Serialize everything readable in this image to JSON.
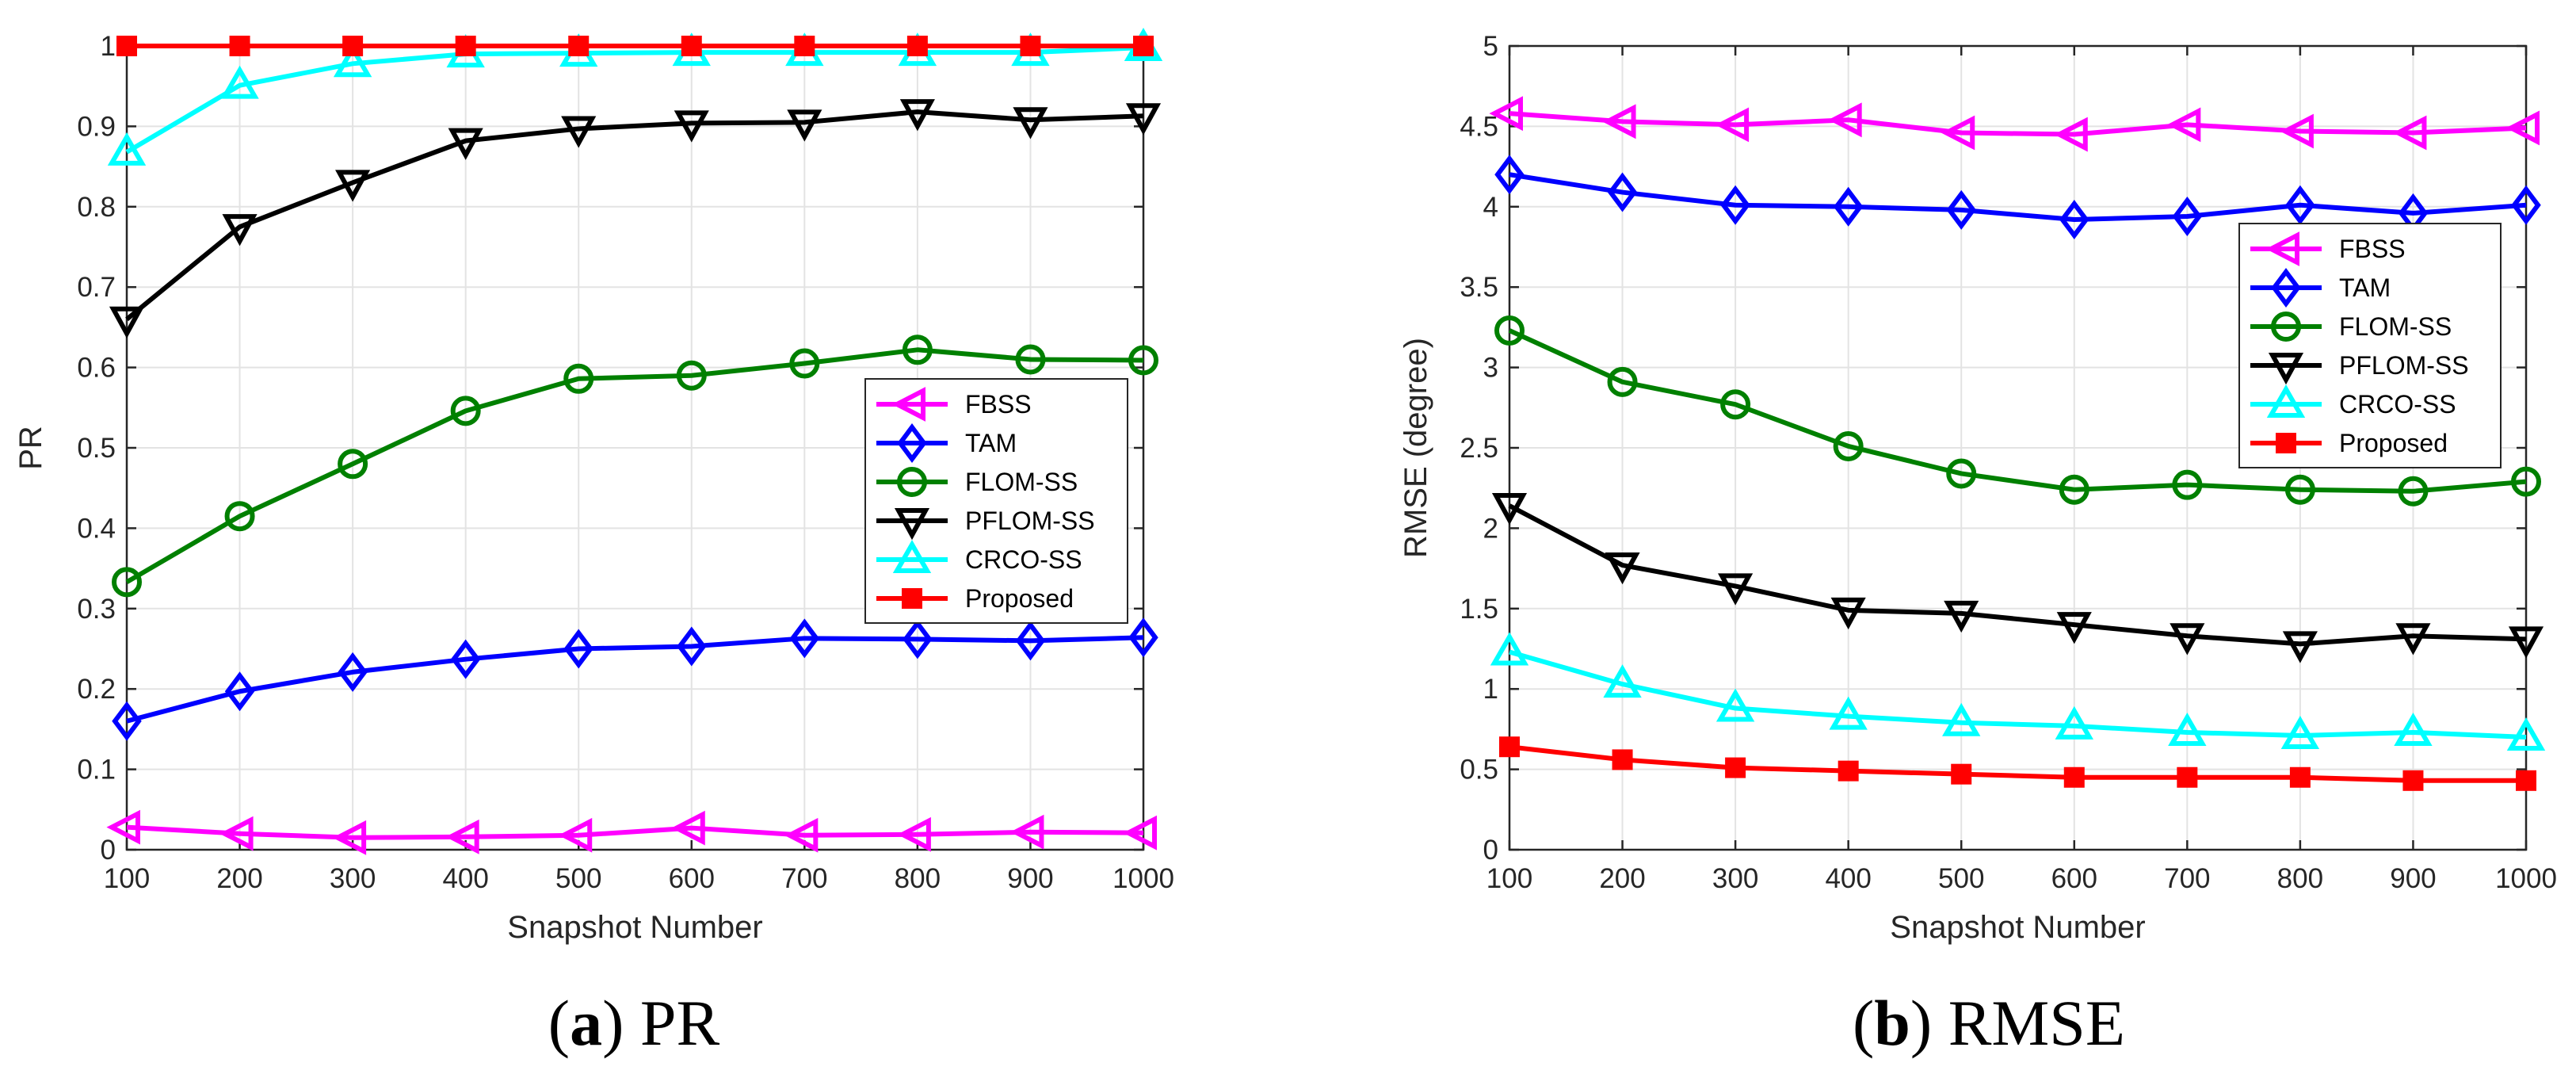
{
  "captions": [
    {
      "open": "(",
      "letter": "a",
      "close": ")",
      "text": " PR"
    },
    {
      "open": "(",
      "letter": "b",
      "close": ")",
      "text": " RMSE"
    }
  ],
  "chart_data": [
    {
      "type": "line",
      "title": "",
      "xlabel": "Snapshot Number",
      "ylabel": "PR",
      "xlim": [
        100,
        1000
      ],
      "ylim": [
        0,
        1
      ],
      "x_ticks": [
        100,
        200,
        300,
        400,
        500,
        600,
        700,
        800,
        900,
        1000
      ],
      "y_ticks": [
        0,
        0.1,
        0.2,
        0.3,
        0.4,
        0.5,
        0.6,
        0.7,
        0.8,
        0.9,
        1
      ],
      "y_tick_labels": [
        "0",
        "0.1",
        "0.2",
        "0.3",
        "0.4",
        "0.5",
        "0.6",
        "0.7",
        "0.8",
        "0.9",
        "1"
      ],
      "grid": true,
      "legend_position": "center-right",
      "x": [
        100,
        200,
        300,
        400,
        500,
        600,
        700,
        800,
        900,
        1000
      ],
      "series": [
        {
          "name": "FBSS",
          "color": "#ff00ff",
          "marker": "triangle-left",
          "values": [
            0.028,
            0.02,
            0.015,
            0.016,
            0.018,
            0.027,
            0.018,
            0.019,
            0.022,
            0.021
          ]
        },
        {
          "name": "TAM",
          "color": "#0000ff",
          "marker": "diamond",
          "values": [
            0.16,
            0.197,
            0.221,
            0.237,
            0.25,
            0.253,
            0.263,
            0.262,
            0.26,
            0.264
          ]
        },
        {
          "name": "FLOM-SS",
          "color": "#008000",
          "marker": "circle",
          "values": [
            0.333,
            0.415,
            0.48,
            0.546,
            0.586,
            0.59,
            0.605,
            0.622,
            0.61,
            0.609
          ]
        },
        {
          "name": "PFLOM-SS",
          "color": "#000000",
          "marker": "triangle-down",
          "values": [
            0.66,
            0.775,
            0.83,
            0.882,
            0.897,
            0.904,
            0.905,
            0.918,
            0.908,
            0.913
          ]
        },
        {
          "name": "CRCO-SS",
          "color": "#00ffff",
          "marker": "triangle-up",
          "values": [
            0.868,
            0.951,
            0.978,
            0.99,
            0.991,
            0.992,
            0.992,
            0.992,
            0.992,
            0.998
          ]
        },
        {
          "name": "Proposed",
          "color": "#ff0000",
          "marker": "square",
          "values": [
            1,
            1,
            1,
            1,
            1,
            1,
            1,
            1,
            1,
            1
          ]
        }
      ]
    },
    {
      "type": "line",
      "title": "",
      "xlabel": "Snapshot Number",
      "ylabel": "RMSE (degree)",
      "xlim": [
        100,
        1000
      ],
      "ylim": [
        0,
        5
      ],
      "x_ticks": [
        100,
        200,
        300,
        400,
        500,
        600,
        700,
        800,
        900,
        1000
      ],
      "y_ticks": [
        0,
        0.5,
        1,
        1.5,
        2,
        2.5,
        3,
        3.5,
        4,
        4.5,
        5
      ],
      "y_tick_labels": [
        "0",
        "0.5",
        "1",
        "1.5",
        "2",
        "2.5",
        "3",
        "3.5",
        "4",
        "4.5",
        "5"
      ],
      "grid": true,
      "legend_position": "top-right",
      "x": [
        100,
        200,
        300,
        400,
        500,
        600,
        700,
        800,
        900,
        1000
      ],
      "series": [
        {
          "name": "FBSS",
          "color": "#ff00ff",
          "marker": "triangle-left",
          "values": [
            4.58,
            4.53,
            4.51,
            4.54,
            4.46,
            4.45,
            4.51,
            4.47,
            4.46,
            4.49
          ]
        },
        {
          "name": "TAM",
          "color": "#0000ff",
          "marker": "diamond",
          "values": [
            4.2,
            4.09,
            4.01,
            4.0,
            3.98,
            3.92,
            3.94,
            4.01,
            3.96,
            4.01
          ]
        },
        {
          "name": "FLOM-SS",
          "color": "#008000",
          "marker": "circle",
          "values": [
            3.23,
            2.91,
            2.77,
            2.51,
            2.34,
            2.24,
            2.27,
            2.24,
            2.23,
            2.29
          ]
        },
        {
          "name": "PFLOM-SS",
          "color": "#000000",
          "marker": "triangle-down",
          "values": [
            2.14,
            1.77,
            1.64,
            1.49,
            1.47,
            1.4,
            1.33,
            1.28,
            1.33,
            1.31
          ]
        },
        {
          "name": "CRCO-SS",
          "color": "#00ffff",
          "marker": "triangle-up",
          "values": [
            1.23,
            1.03,
            0.88,
            0.83,
            0.79,
            0.77,
            0.73,
            0.71,
            0.73,
            0.7
          ]
        },
        {
          "name": "Proposed",
          "color": "#ff0000",
          "marker": "square",
          "values": [
            0.64,
            0.56,
            0.51,
            0.49,
            0.47,
            0.45,
            0.45,
            0.45,
            0.43,
            0.43
          ]
        }
      ]
    }
  ]
}
